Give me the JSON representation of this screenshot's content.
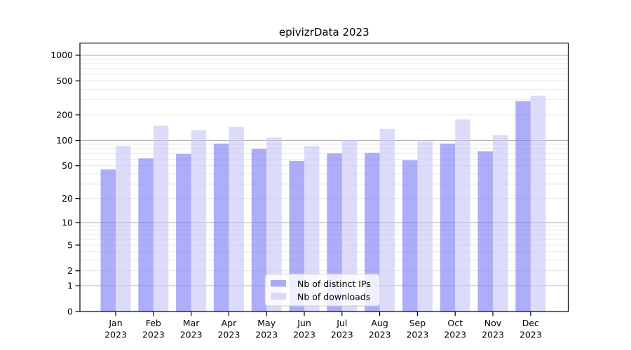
{
  "title": "epivizrData 2023",
  "colors": {
    "bar_ips": "rgba(122,122,246,0.62)",
    "bar_downloads": "rgba(199,199,247,0.62)",
    "grid_major": "#ababab",
    "grid_minor": "#e7e7e7",
    "axis_line": "#000000",
    "legend_border": "#cccccc",
    "legend_bg": "rgba(255,255,255,0.8)"
  },
  "chart_data": {
    "type": "bar",
    "title": "epivizrData 2023",
    "categories": [
      "Jan 2023",
      "Feb 2023",
      "Mar 2023",
      "Apr 2023",
      "May 2023",
      "Jun 2023",
      "Jul 2023",
      "Aug 2023",
      "Sep 2023",
      "Oct 2023",
      "Nov 2023",
      "Dec 2023"
    ],
    "series": [
      {
        "name": "Nb of distinct IPs",
        "values": [
          45,
          61,
          69,
          91,
          79,
          57,
          70,
          71,
          58,
          91,
          74,
          290
        ]
      },
      {
        "name": "Nb of downloads",
        "values": [
          86,
          149,
          131,
          145,
          108,
          86,
          101,
          137,
          97,
          177,
          115,
          335
        ]
      }
    ],
    "xlabel": "",
    "ylabel": "",
    "yscale": "log1p",
    "yticks": [
      0,
      1,
      2,
      5,
      10,
      20,
      50,
      100,
      200,
      500,
      1000
    ],
    "ylim": [
      0,
      1390
    ],
    "grid": "horizontal, major and minor",
    "legend_position": "lower center"
  }
}
